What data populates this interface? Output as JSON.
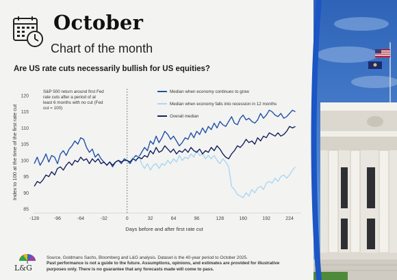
{
  "header": {
    "month": "October",
    "subtitle": "Chart of the month"
  },
  "question": "Are US rate cuts necessarily bullish for US equities?",
  "chart_data": {
    "type": "line",
    "annotation": "S&P 500 return around first Fed rate cuts after a period of at least 6 months with no cut (Fed cut = 100)",
    "xlabel": "Days before and after first rate cut",
    "ylabel": "Index to 100 at the time of the first rate cut",
    "xlim": [
      -130,
      240
    ],
    "ylim": [
      85,
      120
    ],
    "x_ticks": [
      -128,
      -96,
      -64,
      -32,
      0,
      32,
      64,
      96,
      128,
      160,
      192,
      224
    ],
    "y_ticks": [
      85,
      90,
      95,
      100,
      105,
      110,
      115,
      120
    ],
    "vline_x": 0,
    "legend_position": "top-right",
    "series": [
      {
        "name": "Median when economy continues to grow",
        "color": "#1f4fa8",
        "points": [
          [
            -128,
            99.0
          ],
          [
            -124,
            101.0
          ],
          [
            -120,
            98.5
          ],
          [
            -116,
            100.0
          ],
          [
            -112,
            102.0
          ],
          [
            -108,
            99.5
          ],
          [
            -104,
            101.5
          ],
          [
            -100,
            101.0
          ],
          [
            -96,
            99.0
          ],
          [
            -92,
            102.0
          ],
          [
            -88,
            103.0
          ],
          [
            -84,
            101.5
          ],
          [
            -80,
            103.5
          ],
          [
            -76,
            104.5
          ],
          [
            -72,
            106.0
          ],
          [
            -68,
            105.0
          ],
          [
            -64,
            107.0
          ],
          [
            -60,
            106.5
          ],
          [
            -56,
            104.0
          ],
          [
            -52,
            102.5
          ],
          [
            -48,
            103.5
          ],
          [
            -44,
            101.0
          ],
          [
            -40,
            102.0
          ],
          [
            -36,
            100.5
          ],
          [
            -32,
            99.5
          ],
          [
            -28,
            98.5
          ],
          [
            -24,
            99.5
          ],
          [
            -20,
            98.0
          ],
          [
            -16,
            99.5
          ],
          [
            -12,
            100.0
          ],
          [
            -8,
            99.0
          ],
          [
            -4,
            100.5
          ],
          [
            0,
            100.0
          ],
          [
            4,
            99.0
          ],
          [
            8,
            100.5
          ],
          [
            12,
            101.5
          ],
          [
            16,
            101.0
          ],
          [
            20,
            102.5
          ],
          [
            24,
            104.0
          ],
          [
            28,
            103.0
          ],
          [
            32,
            106.0
          ],
          [
            36,
            105.0
          ],
          [
            40,
            107.5
          ],
          [
            44,
            105.5
          ],
          [
            48,
            107.0
          ],
          [
            52,
            109.0
          ],
          [
            56,
            108.0
          ],
          [
            60,
            106.5
          ],
          [
            64,
            107.5
          ],
          [
            68,
            106.0
          ],
          [
            72,
            104.5
          ],
          [
            76,
            105.5
          ],
          [
            80,
            107.0
          ],
          [
            84,
            106.5
          ],
          [
            88,
            108.5
          ],
          [
            92,
            107.0
          ],
          [
            96,
            109.0
          ],
          [
            100,
            108.0
          ],
          [
            104,
            110.0
          ],
          [
            108,
            108.5
          ],
          [
            112,
            110.5
          ],
          [
            116,
            109.5
          ],
          [
            120,
            111.5
          ],
          [
            124,
            110.0
          ],
          [
            128,
            112.0
          ],
          [
            132,
            111.0
          ],
          [
            136,
            110.5
          ],
          [
            140,
            112.0
          ],
          [
            144,
            113.5
          ],
          [
            148,
            111.5
          ],
          [
            152,
            111.0
          ],
          [
            156,
            113.0
          ],
          [
            160,
            114.0
          ],
          [
            164,
            112.5
          ],
          [
            168,
            113.0
          ],
          [
            172,
            112.0
          ],
          [
            176,
            111.5
          ],
          [
            180,
            112.5
          ],
          [
            184,
            114.5
          ],
          [
            188,
            113.0
          ],
          [
            192,
            114.0
          ],
          [
            196,
            115.5
          ],
          [
            200,
            115.0
          ],
          [
            204,
            114.0
          ],
          [
            208,
            113.5
          ],
          [
            212,
            114.5
          ],
          [
            216,
            113.0
          ],
          [
            220,
            113.5
          ],
          [
            224,
            114.5
          ],
          [
            228,
            115.5
          ],
          [
            232,
            115.0
          ]
        ]
      },
      {
        "name": "Median when economy falls into recession in 12 months",
        "color": "#a9d6f2",
        "points": [
          [
            0,
            100.0
          ],
          [
            4,
            99.5
          ],
          [
            8,
            101.0
          ],
          [
            12,
            99.5
          ],
          [
            16,
            101.5
          ],
          [
            20,
            99.0
          ],
          [
            24,
            97.5
          ],
          [
            28,
            99.0
          ],
          [
            32,
            97.0
          ],
          [
            36,
            98.5
          ],
          [
            40,
            99.0
          ],
          [
            44,
            97.5
          ],
          [
            48,
            99.0
          ],
          [
            52,
            98.5
          ],
          [
            56,
            100.0
          ],
          [
            60,
            99.0
          ],
          [
            64,
            100.5
          ],
          [
            68,
            99.5
          ],
          [
            72,
            101.5
          ],
          [
            76,
            100.0
          ],
          [
            80,
            101.0
          ],
          [
            84,
            100.5
          ],
          [
            88,
            102.0
          ],
          [
            92,
            101.0
          ],
          [
            96,
            103.0
          ],
          [
            100,
            101.5
          ],
          [
            104,
            102.0
          ],
          [
            108,
            100.5
          ],
          [
            112,
            101.5
          ],
          [
            116,
            100.5
          ],
          [
            120,
            101.5
          ],
          [
            124,
            100.0
          ],
          [
            128,
            99.0
          ],
          [
            132,
            100.5
          ],
          [
            136,
            99.5
          ],
          [
            140,
            98.0
          ],
          [
            144,
            92.0
          ],
          [
            148,
            91.0
          ],
          [
            152,
            89.5
          ],
          [
            156,
            89.0
          ],
          [
            160,
            88.5
          ],
          [
            164,
            90.0
          ],
          [
            168,
            89.0
          ],
          [
            172,
            91.0
          ],
          [
            176,
            90.0
          ],
          [
            180,
            91.5
          ],
          [
            184,
            92.0
          ],
          [
            188,
            91.0
          ],
          [
            192,
            93.0
          ],
          [
            196,
            93.5
          ],
          [
            200,
            93.0
          ],
          [
            204,
            94.5
          ],
          [
            208,
            93.5
          ],
          [
            212,
            95.0
          ],
          [
            216,
            95.5
          ],
          [
            220,
            94.5
          ],
          [
            224,
            95.5
          ],
          [
            228,
            97.0
          ],
          [
            232,
            98.0
          ]
        ]
      },
      {
        "name": "Overall median",
        "color": "#13215c",
        "points": [
          [
            -128,
            92.0
          ],
          [
            -124,
            93.5
          ],
          [
            -120,
            93.0
          ],
          [
            -116,
            94.0
          ],
          [
            -112,
            95.5
          ],
          [
            -108,
            95.0
          ],
          [
            -104,
            96.5
          ],
          [
            -100,
            95.5
          ],
          [
            -96,
            97.5
          ],
          [
            -92,
            98.0
          ],
          [
            -88,
            97.0
          ],
          [
            -84,
            98.5
          ],
          [
            -80,
            99.5
          ],
          [
            -76,
            98.5
          ],
          [
            -72,
            100.0
          ],
          [
            -68,
            99.5
          ],
          [
            -64,
            101.0
          ],
          [
            -60,
            100.0
          ],
          [
            -56,
            100.5
          ],
          [
            -52,
            99.0
          ],
          [
            -48,
            100.5
          ],
          [
            -44,
            99.5
          ],
          [
            -40,
            100.5
          ],
          [
            -36,
            99.0
          ],
          [
            -32,
            99.5
          ],
          [
            -28,
            98.5
          ],
          [
            -24,
            99.5
          ],
          [
            -20,
            98.5
          ],
          [
            -16,
            99.5
          ],
          [
            -12,
            100.0
          ],
          [
            -8,
            99.5
          ],
          [
            -4,
            100.0
          ],
          [
            0,
            100.0
          ],
          [
            4,
            99.5
          ],
          [
            8,
            100.5
          ],
          [
            12,
            100.0
          ],
          [
            16,
            101.0
          ],
          [
            20,
            100.5
          ],
          [
            24,
            101.5
          ],
          [
            28,
            101.0
          ],
          [
            32,
            103.0
          ],
          [
            36,
            102.0
          ],
          [
            40,
            104.0
          ],
          [
            44,
            102.5
          ],
          [
            48,
            103.0
          ],
          [
            52,
            104.5
          ],
          [
            56,
            103.5
          ],
          [
            60,
            102.5
          ],
          [
            64,
            103.5
          ],
          [
            68,
            102.0
          ],
          [
            72,
            103.0
          ],
          [
            76,
            102.5
          ],
          [
            80,
            103.5
          ],
          [
            84,
            102.5
          ],
          [
            88,
            104.0
          ],
          [
            92,
            103.0
          ],
          [
            96,
            102.5
          ],
          [
            100,
            103.5
          ],
          [
            104,
            102.0
          ],
          [
            108,
            103.0
          ],
          [
            112,
            102.5
          ],
          [
            116,
            104.0
          ],
          [
            120,
            103.0
          ],
          [
            124,
            104.5
          ],
          [
            128,
            103.5
          ],
          [
            132,
            102.0
          ],
          [
            136,
            101.0
          ],
          [
            140,
            100.5
          ],
          [
            144,
            102.0
          ],
          [
            148,
            103.0
          ],
          [
            152,
            104.5
          ],
          [
            156,
            104.0
          ],
          [
            160,
            105.0
          ],
          [
            164,
            106.5
          ],
          [
            168,
            105.5
          ],
          [
            172,
            106.0
          ],
          [
            176,
            105.0
          ],
          [
            180,
            107.0
          ],
          [
            184,
            106.0
          ],
          [
            188,
            107.5
          ],
          [
            192,
            107.0
          ],
          [
            196,
            108.5
          ],
          [
            200,
            108.0
          ],
          [
            204,
            107.5
          ],
          [
            208,
            108.5
          ],
          [
            212,
            107.5
          ],
          [
            216,
            108.0
          ],
          [
            220,
            109.0
          ],
          [
            224,
            110.5
          ],
          [
            228,
            110.0
          ],
          [
            232,
            110.5
          ]
        ]
      }
    ]
  },
  "footer": {
    "source": "Source, Goldmans Sachs, Bloomberg and L&G analysis. Dataset is the 40-year period to October 2025.",
    "disclaimer": "Past performance is not a guide to the future. Assumptions, opinions, and estimates are provided for illustrative purposes only. There is no guarantee that any forecasts made will come to pass."
  },
  "logo_text": "L&G",
  "colors": {
    "accent_blue": "#1f4fa8",
    "side_stripe": "#1c55c4"
  }
}
